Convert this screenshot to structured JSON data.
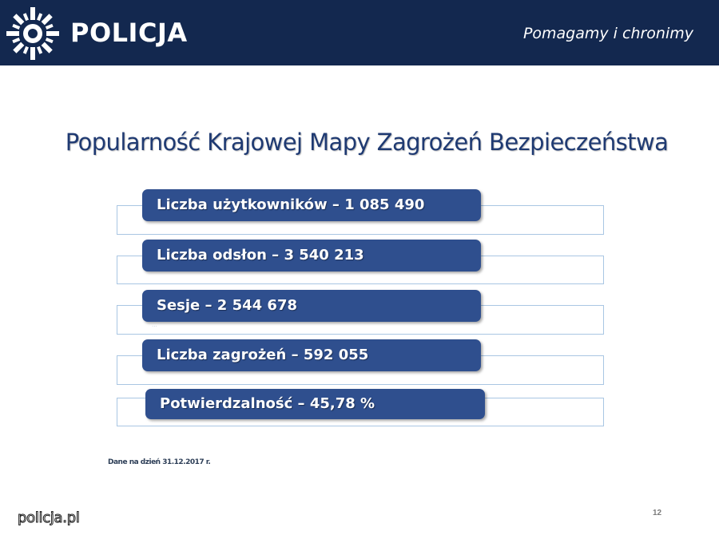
{
  "header": {
    "brand": "POLICJA",
    "slogan": "Pomagamy i chronimy",
    "logo_icon": "police-star-icon",
    "background": "#13284f"
  },
  "title": "Popularność Krajowej Mapy Zagrożeń Bezpieczeństwa",
  "stats": [
    {
      "label": "Liczba użytkowników – 1 085 490"
    },
    {
      "label": "Liczba odsłon – 3 540 213"
    },
    {
      "label": "Sesje – 2 544 678"
    },
    {
      "label": "Liczba zagrożeń – 592 055"
    },
    {
      "label": "Potwierdzalność – 45,78 %"
    }
  ],
  "faint_text": "...",
  "note": "Dane na dzień 31.12.2017 r.",
  "page_number": "12",
  "footer": "policja.pl",
  "colors": {
    "pill": "#2f4f8e",
    "outline": "#a9c6e3",
    "title": "#1f3a72"
  }
}
